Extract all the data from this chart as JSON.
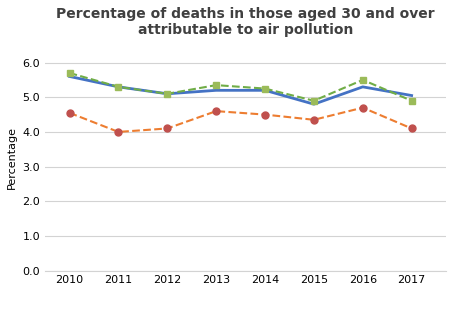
{
  "title": "Percentage of deaths in those aged 30 and over\nattributable to air pollution",
  "ylabel": "Percentage",
  "years": [
    2010,
    2011,
    2012,
    2013,
    2014,
    2015,
    2016,
    2017
  ],
  "england": [
    5.6,
    5.3,
    5.1,
    5.2,
    5.2,
    4.8,
    5.3,
    5.05
  ],
  "herefordshire": [
    4.55,
    4.0,
    4.1,
    4.6,
    4.5,
    4.35,
    4.7,
    4.1
  ],
  "west_midlands": [
    5.7,
    5.3,
    5.1,
    5.35,
    5.25,
    4.9,
    5.5,
    4.9
  ],
  "england_color": "#4472C4",
  "herefordshire_color": "#ED7D31",
  "west_midlands_color": "#70AD47",
  "herefordshire_marker_color": "#C0504D",
  "west_midlands_marker_color": "#9BBB59",
  "ylim": [
    0.0,
    6.5
  ],
  "yticks": [
    0.0,
    1.0,
    2.0,
    3.0,
    4.0,
    5.0,
    6.0
  ],
  "background_color": "#ffffff",
  "title_color": "#404040",
  "title_fontsize": 10,
  "axis_label_fontsize": 8,
  "tick_fontsize": 8,
  "legend_fontsize": 8
}
